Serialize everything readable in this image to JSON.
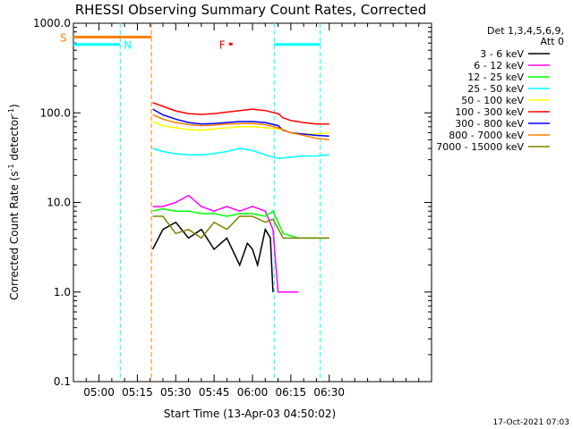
{
  "chart_data": {
    "type": "line",
    "title": "RHESSI Observing Summary Count Rates, Corrected",
    "xlabel": "Start Time (13-Apr-03 04:50:02)",
    "ylabel_main": "Corrected Count Rate (s",
    "ylabel_sup1": "-1",
    "ylabel_mid": " detector",
    "ylabel_sup2": "-1",
    "ylabel_end": ")",
    "y_scale": "log",
    "ylim": [
      0.1,
      1000.0
    ],
    "xlim_minutes": [
      -10,
      130
    ],
    "x_tick_labels": [
      "05:00",
      "05:15",
      "05:30",
      "05:45",
      "06:00",
      "06:15",
      "06:30"
    ],
    "x_tick_minutes": [
      0,
      15,
      30,
      45,
      60,
      75,
      90
    ],
    "y_tick_labels": [
      "0.1",
      "1.0",
      "10.0",
      "100.0",
      "1000.0"
    ],
    "y_tick_values": [
      0.1,
      1.0,
      10.0,
      100.0,
      1000.0
    ],
    "legend_header": [
      "Det 1,3,4,5,6,9,",
      "Att 0"
    ],
    "legend_placement": "right",
    "series": [
      {
        "name": "3 - 6 keV",
        "color": "#000000",
        "x": [
          21,
          25,
          30,
          35,
          40,
          45,
          50,
          55,
          58,
          60,
          62,
          65,
          67,
          68
        ],
        "y": [
          3.0,
          5.0,
          6.0,
          4.0,
          5.0,
          3.0,
          4.0,
          2.0,
          3.5,
          3.0,
          2.0,
          5.0,
          4.0,
          1.0
        ]
      },
      {
        "name": "6 - 12 keV",
        "color": "#ff00ff",
        "x": [
          21,
          25,
          30,
          35,
          40,
          45,
          50,
          55,
          60,
          65,
          68,
          70,
          72,
          78
        ],
        "y": [
          9.0,
          9.0,
          10.0,
          12.0,
          9.0,
          8.0,
          9.0,
          8.0,
          9.0,
          8.0,
          5.0,
          1.0,
          1.0,
          1.0
        ]
      },
      {
        "name": "12 - 25 keV",
        "color": "#00ff00",
        "x": [
          21,
          25,
          30,
          35,
          40,
          45,
          50,
          55,
          60,
          65,
          68,
          72,
          78,
          90
        ],
        "y": [
          8.0,
          8.5,
          8.0,
          8.0,
          7.5,
          7.5,
          7.0,
          7.5,
          7.5,
          7.0,
          8.0,
          4.5,
          4.0,
          4.0
        ]
      },
      {
        "name": "25 - 50 keV",
        "color": "#00ffff",
        "x": [
          21,
          25,
          30,
          35,
          40,
          45,
          50,
          55,
          60,
          65,
          70,
          75,
          80,
          85,
          90
        ],
        "y": [
          40.0,
          37.0,
          35.0,
          34.0,
          34.0,
          35.0,
          37.0,
          40.0,
          38.0,
          34.0,
          31.0,
          32.0,
          33.0,
          33.0,
          34.0
        ]
      },
      {
        "name": "50 - 100 keV",
        "color": "#ffff00",
        "x": [
          21,
          25,
          30,
          35,
          40,
          45,
          50,
          55,
          60,
          65,
          70,
          75,
          80,
          85,
          90
        ],
        "y": [
          80.0,
          72.0,
          68.0,
          65.0,
          64.0,
          66.0,
          68.0,
          70.0,
          70.0,
          68.0,
          66.0,
          60.0,
          58.0,
          58.0,
          60.0
        ]
      },
      {
        "name": "100 - 300 keV",
        "color": "#ff0000",
        "x": [
          21,
          25,
          30,
          35,
          40,
          45,
          50,
          55,
          60,
          65,
          70,
          72,
          75,
          80,
          85,
          90
        ],
        "y": [
          130.0,
          118.0,
          105.0,
          98.0,
          96.0,
          98.0,
          102.0,
          106.0,
          110.0,
          106.0,
          98.0,
          88.0,
          82.0,
          78.0,
          75.0,
          75.0
        ]
      },
      {
        "name": "300 - 800 keV",
        "color": "#0000ff",
        "x": [
          21,
          25,
          30,
          35,
          40,
          45,
          50,
          55,
          60,
          65,
          70,
          72,
          75,
          80,
          85,
          90
        ],
        "y": [
          110.0,
          95.0,
          85.0,
          78.0,
          75.0,
          76.0,
          78.0,
          80.0,
          80.0,
          78.0,
          72.0,
          64.0,
          60.0,
          58.0,
          56.0,
          55.0
        ]
      },
      {
        "name": "800 - 7000 keV",
        "color": "#ff8000",
        "x": [
          21,
          25,
          30,
          35,
          40,
          45,
          50,
          55,
          60,
          65,
          70,
          75,
          80,
          85,
          90
        ],
        "y": [
          95.0,
          85.0,
          78.0,
          74.0,
          72.0,
          73.0,
          75.0,
          76.0,
          76.0,
          74.0,
          68.0,
          60.0,
          56.0,
          52.0,
          50.0
        ]
      },
      {
        "name": "7000 - 15000 keV",
        "color": "#808000",
        "x": [
          21,
          25,
          30,
          35,
          40,
          45,
          50,
          55,
          60,
          65,
          68,
          72,
          78,
          90
        ],
        "y": [
          7.0,
          7.0,
          4.5,
          5.0,
          4.0,
          6.0,
          5.0,
          7.0,
          7.0,
          6.0,
          6.5,
          4.0,
          4.0,
          4.0
        ]
      }
    ],
    "flag_labels": [
      {
        "text": "S",
        "color": "#ff8000"
      },
      {
        "text": "N",
        "color": "#00ffff"
      },
      {
        "text": "F",
        "color": "#ff0000"
      }
    ],
    "saa_flag": {
      "color": "#ff8000",
      "x_start": -10,
      "x_end": 20.5,
      "level": 700.0
    },
    "night_flag_1": {
      "color": "#00ffff",
      "x_start": -10,
      "x_end": 8.3,
      "level": 580.0
    },
    "night_flag_2": {
      "color": "#00ffff",
      "x_start": 68.5,
      "x_end": 86.5,
      "level": 580.0
    },
    "flare_marker": {
      "color": "#ff0000",
      "x": 48.0,
      "level": 580.0
    },
    "vlines": [
      {
        "x": 8.3,
        "color": "#00ffff"
      },
      {
        "x": 20.5,
        "color": "#ff8000"
      },
      {
        "x": 68.5,
        "color": "#00ffff"
      },
      {
        "x": 86.5,
        "color": "#00ffff"
      }
    ],
    "footer_date": "17-Oct-2021 07:03"
  }
}
